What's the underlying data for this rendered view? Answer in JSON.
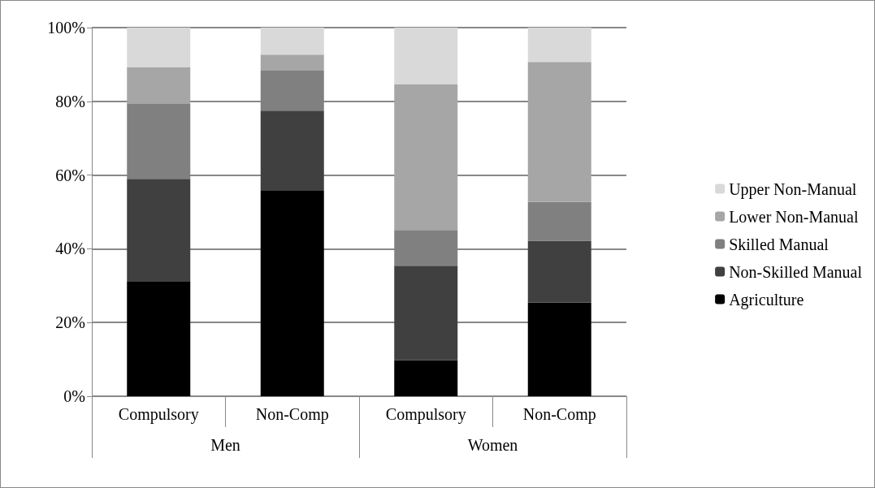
{
  "chart_data": {
    "type": "bar",
    "stacked": true,
    "categories": [
      "Compulsory",
      "Non-Comp",
      "Compulsory",
      "Non-Comp"
    ],
    "annotations": [
      "Men",
      "Women"
    ],
    "series": [
      {
        "name": "Agriculture",
        "color": "#000000",
        "values": [
          31.2,
          55.7,
          9.8,
          25.4
        ]
      },
      {
        "name": "Non-Skilled Manual",
        "color": "#404040",
        "values": [
          27.8,
          21.8,
          25.6,
          16.8
        ]
      },
      {
        "name": "Skilled Manual",
        "color": "#808080",
        "values": [
          20.3,
          10.8,
          9.7,
          10.5
        ]
      },
      {
        "name": "Lower Non-Manual",
        "color": "#a6a6a6",
        "values": [
          9.9,
          4.4,
          39.5,
          38.0
        ]
      },
      {
        "name": "Upper Non-Manual",
        "color": "#d9d9d9",
        "values": [
          10.8,
          7.3,
          15.4,
          9.3
        ]
      }
    ],
    "ylim": [
      0,
      100
    ],
    "yticks": [
      {
        "value": 0,
        "label": "0%"
      },
      {
        "value": 20,
        "label": "20%"
      },
      {
        "value": 40,
        "label": "40%"
      },
      {
        "value": 60,
        "label": "60%"
      },
      {
        "value": 80,
        "label": "80%"
      },
      {
        "value": 100,
        "label": "100%"
      }
    ],
    "grid": "y",
    "legend": "right"
  }
}
